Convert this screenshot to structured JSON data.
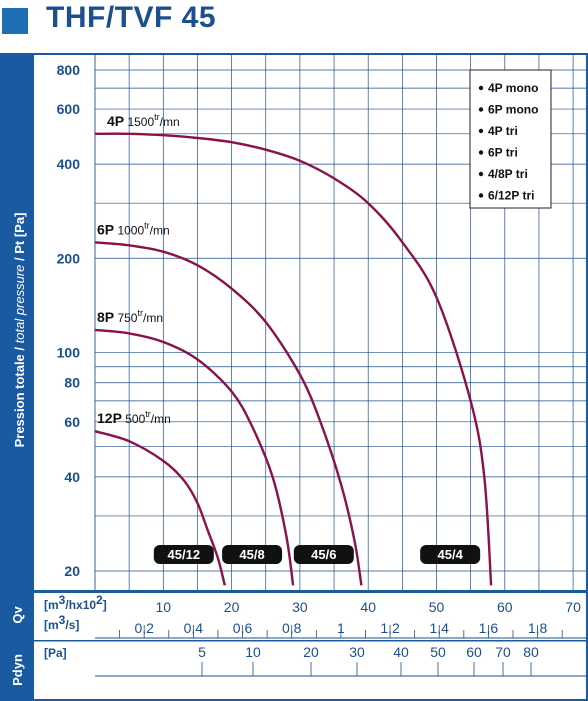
{
  "title": "THF/TVF 45",
  "colors": {
    "accent_square": "#1f6fb6",
    "frame": "#1a5aa0",
    "grid": "#1e4f8c",
    "curve": "#8a1248",
    "badge": "#111111"
  },
  "chart_data": {
    "type": "line",
    "ylabel_parts": [
      "Pression totale / ",
      "total pressure",
      " / Pt [Pa]"
    ],
    "yscale": "log",
    "ylim": [
      18,
      900
    ],
    "yticks": [
      20,
      40,
      60,
      80,
      100,
      200,
      400,
      600,
      800
    ],
    "xlim": [
      0,
      70
    ],
    "xticks": [
      10,
      20,
      30,
      40,
      50,
      60,
      70
    ],
    "grid": true,
    "legend_position": "top-right",
    "legend": [
      "4P mono",
      "6P mono",
      "4P tri",
      "6P tri",
      "4/8P tri",
      "6/12P tri"
    ],
    "series": [
      {
        "name_main": "4P",
        "name_speed": "1500",
        "name_unit_sup": "tr",
        "name_unit_sub": "/mn",
        "x": [
          0,
          5,
          10,
          15,
          20,
          25,
          30,
          35,
          40,
          45,
          50,
          55,
          57,
          58
        ],
        "y": [
          500,
          500,
          495,
          485,
          470,
          445,
          410,
          360,
          300,
          225,
          150,
          70,
          40,
          18
        ]
      },
      {
        "name_main": "6P",
        "name_speed": "1000",
        "name_unit_sup": "tr",
        "name_unit_sub": "/mn",
        "x": [
          0,
          5,
          10,
          15,
          20,
          25,
          30,
          33,
          36,
          38,
          39
        ],
        "y": [
          225,
          220,
          210,
          190,
          160,
          125,
          85,
          60,
          38,
          25,
          18
        ]
      },
      {
        "name_main": "8P",
        "name_speed": "750",
        "name_unit_sup": "tr",
        "name_unit_sub": "/mn",
        "x": [
          0,
          5,
          10,
          15,
          20,
          23,
          26,
          28,
          29
        ],
        "y": [
          118,
          115,
          108,
          95,
          75,
          58,
          40,
          26,
          18
        ]
      },
      {
        "name_main": "12P",
        "name_speed": "500",
        "name_unit_sup": "tr",
        "name_unit_sub": "/mn",
        "x": [
          0,
          5,
          10,
          13,
          15,
          16.5,
          18,
          19
        ],
        "y": [
          56,
          52,
          45,
          39,
          33,
          27,
          22,
          18
        ]
      }
    ],
    "model_badges": [
      {
        "label": "45/12",
        "x": 13
      },
      {
        "label": "45/8",
        "x": 23
      },
      {
        "label": "45/6",
        "x": 33.5
      },
      {
        "label": "45/4",
        "x": 52
      }
    ],
    "qv_row": {
      "axis_label": "Qv",
      "unit1": "[m3/hx102]",
      "unit1_parts": [
        "[m",
        "3",
        "/hx10",
        "2",
        "]"
      ],
      "unit2_parts": [
        "[m",
        "3",
        "/s]"
      ],
      "values_m3h": [
        10,
        20,
        30,
        40,
        50,
        60,
        70
      ],
      "values_m3s": [
        "0,2",
        "0,4",
        "0,6",
        "0,8",
        "1",
        "1,2",
        "1,4",
        "1,6",
        "1,8"
      ]
    },
    "pdyn_row": {
      "axis_label": "Pdyn",
      "unit": "[Pa]",
      "values": [
        "5",
        "10",
        "20",
        "30",
        "40",
        "50",
        "60",
        "70",
        "80"
      ],
      "values_num": [
        5,
        10,
        20,
        30,
        40,
        50,
        60,
        70,
        80
      ]
    }
  }
}
